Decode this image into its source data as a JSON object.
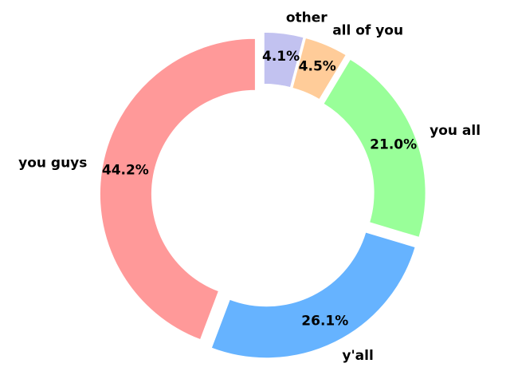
{
  "chart_data": {
    "type": "donut",
    "categories": [
      "you guys",
      "y'all",
      "you all",
      "all of you",
      "other"
    ],
    "values": [
      44.2,
      26.1,
      21.0,
      4.5,
      4.1
    ],
    "value_labels": [
      "44.2%",
      "26.1%",
      "21.0%",
      "4.5%",
      "4.1%"
    ],
    "colors": [
      "#ff9999",
      "#66b3ff",
      "#99ff99",
      "#ffcc99",
      "#c2c2f0"
    ]
  }
}
